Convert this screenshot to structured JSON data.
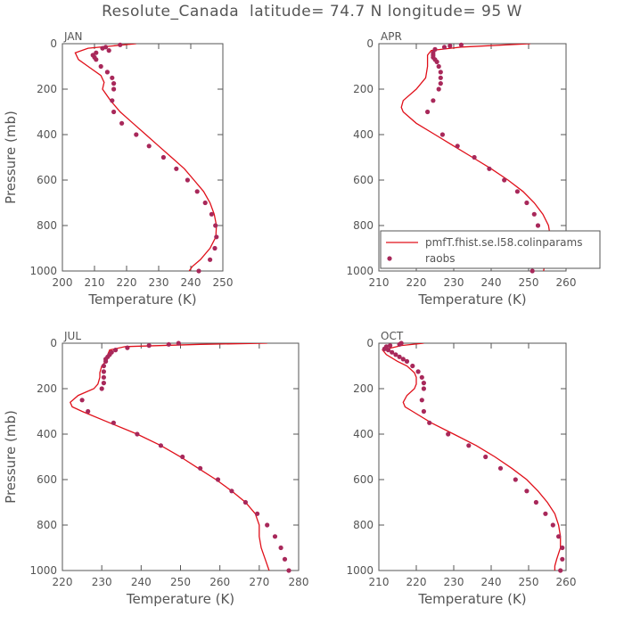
{
  "header": {
    "title": "Resolute_Canada  latitude= 74.7 N longitude= 95 W"
  },
  "colors": {
    "model_line": "#e0101a",
    "obs_dot": "#a8285a",
    "axis": "#555555"
  },
  "chart_data": [
    {
      "type": "line+scatter",
      "panel_label": "JAN",
      "xlabel": "Temperature (K)",
      "ylabel": "Pressure (mb)",
      "xlim": [
        200,
        250
      ],
      "ylim": [
        1000,
        0
      ],
      "xticks": [
        200,
        210,
        220,
        230,
        240,
        250
      ],
      "yticks": [
        0,
        200,
        400,
        600,
        800,
        1000
      ],
      "model": {
        "name": "pmfT.fhist.se.l58.colinparams",
        "p": [
          0,
          20,
          40,
          70,
          100,
          140,
          170,
          200,
          250,
          300,
          350,
          400,
          450,
          500,
          550,
          600,
          650,
          700,
          750,
          800,
          850,
          900,
          950,
          980,
          1000
        ],
        "t": [
          223,
          208,
          204,
          205,
          208,
          212,
          213,
          212.5,
          215,
          218,
          222,
          226,
          230,
          234,
          238,
          241,
          244,
          246,
          247.3,
          248,
          247.8,
          246,
          243,
          240.5,
          239.5
        ]
      },
      "raobs": {
        "name": "raobs",
        "p": [
          5,
          15,
          20,
          30,
          40,
          50,
          60,
          70,
          100,
          125,
          150,
          175,
          200,
          250,
          300,
          350,
          400,
          450,
          500,
          550,
          600,
          650,
          700,
          750,
          800,
          850,
          900,
          950,
          1000
        ],
        "t": [
          218,
          213.5,
          212.5,
          214.5,
          210.5,
          209.5,
          210,
          210.5,
          212,
          214,
          215.5,
          216,
          216,
          215.5,
          216,
          218.5,
          223,
          227,
          231.5,
          235.5,
          239,
          242,
          244.5,
          246.5,
          247.7,
          248,
          247.5,
          246,
          242.5
        ]
      }
    },
    {
      "type": "line+scatter",
      "panel_label": "APR",
      "xlabel": "Temperature (K)",
      "ylabel": "",
      "xlim": [
        210,
        260
      ],
      "ylim": [
        1000,
        0
      ],
      "xticks": [
        210,
        220,
        230,
        240,
        250,
        260
      ],
      "yticks": [
        0,
        200,
        400,
        600,
        800,
        1000
      ],
      "legend": {
        "location": "lower-right",
        "line_label": "pmfT.fhist.se.l58.colinparams",
        "dot_label": "raobs"
      },
      "model": {
        "name": "pmfT.fhist.se.l58.colinparams",
        "p": [
          0,
          15,
          30,
          50,
          100,
          150,
          200,
          250,
          280,
          300,
          350,
          400,
          450,
          500,
          550,
          600,
          650,
          700,
          750,
          800,
          850,
          900,
          950,
          1000
        ],
        "t": [
          250.5,
          232,
          224,
          223,
          223,
          222.5,
          220,
          216.5,
          216,
          216.5,
          220,
          225,
          230,
          235,
          240,
          244.5,
          248.5,
          251.5,
          253.8,
          255.3,
          255.8,
          255.3,
          254.5,
          254
        ]
      },
      "raobs": {
        "name": "raobs",
        "p": [
          5,
          10,
          15,
          25,
          40,
          50,
          60,
          70,
          80,
          100,
          125,
          150,
          175,
          200,
          250,
          300,
          400,
          450,
          500,
          550,
          600,
          650,
          700,
          750,
          800,
          850,
          900,
          950,
          1000
        ],
        "t": [
          232,
          229,
          227.5,
          225,
          224.5,
          224.5,
          224.5,
          225,
          225.5,
          226,
          226.5,
          226.5,
          226.5,
          226,
          224.5,
          223,
          227,
          231,
          235.5,
          239.5,
          243.5,
          247,
          249.5,
          251.5,
          252.5,
          253.5,
          254,
          253.5,
          251
        ]
      }
    },
    {
      "type": "line+scatter",
      "panel_label": "JUL",
      "xlabel": "Temperature (K)",
      "ylabel": "Pressure (mb)",
      "xlim": [
        220,
        280
      ],
      "ylim": [
        1000,
        0
      ],
      "xticks": [
        220,
        230,
        240,
        250,
        260,
        270,
        280
      ],
      "yticks": [
        0,
        200,
        400,
        600,
        800,
        1000
      ],
      "model": {
        "name": "pmfT.fhist.se.l58.colinparams",
        "p": [
          0,
          5,
          15,
          30,
          50,
          80,
          100,
          130,
          150,
          180,
          200,
          230,
          260,
          280,
          300,
          350,
          400,
          450,
          500,
          550,
          600,
          650,
          700,
          750,
          800,
          850,
          900,
          950,
          1000
        ],
        "t": [
          272,
          255,
          236,
          232,
          231.5,
          231,
          230,
          229.5,
          229.5,
          229,
          228,
          224,
          222,
          222.5,
          225,
          232,
          239,
          245,
          250,
          254.5,
          259,
          263,
          266.5,
          269,
          270,
          270,
          270.5,
          271.5,
          272.5
        ]
      },
      "raobs": {
        "name": "raobs",
        "p": [
          0,
          5,
          10,
          20,
          30,
          40,
          50,
          60,
          70,
          80,
          100,
          125,
          150,
          175,
          200,
          250,
          300,
          350,
          400,
          450,
          500,
          550,
          600,
          650,
          700,
          750,
          800,
          850,
          900,
          950,
          1000
        ],
        "t": [
          249.5,
          247,
          242,
          236.5,
          233.5,
          232.5,
          232,
          231.5,
          231,
          231,
          230.5,
          230.5,
          230.5,
          230.5,
          230,
          225,
          226.5,
          233,
          239,
          245,
          250.5,
          255,
          259.5,
          263,
          266.5,
          269.5,
          272,
          274,
          275.5,
          276.5,
          277.5
        ]
      }
    },
    {
      "type": "line+scatter",
      "panel_label": "OCT",
      "xlabel": "Temperature (K)",
      "ylabel": "",
      "xlim": [
        210,
        260
      ],
      "ylim": [
        1000,
        0
      ],
      "xticks": [
        210,
        220,
        230,
        240,
        250,
        260
      ],
      "yticks": [
        0,
        200,
        400,
        600,
        800,
        1000
      ],
      "model": {
        "name": "pmfT.fhist.se.l58.colinparams",
        "p": [
          0,
          10,
          30,
          50,
          80,
          100,
          130,
          150,
          180,
          200,
          230,
          260,
          280,
          300,
          350,
          400,
          450,
          500,
          550,
          600,
          650,
          700,
          750,
          800,
          850,
          900,
          950,
          980,
          1000
        ],
        "t": [
          222,
          216,
          211,
          212,
          215,
          217.5,
          219.5,
          220,
          220,
          219.5,
          217.5,
          216.5,
          217,
          219,
          224,
          230,
          236,
          241,
          245.5,
          249.5,
          252.5,
          255,
          257,
          258,
          258.5,
          258.5,
          257.5,
          257,
          257
        ]
      },
      "raobs": {
        "name": "raobs",
        "p": [
          0,
          5,
          10,
          15,
          25,
          30,
          40,
          50,
          60,
          70,
          80,
          100,
          125,
          150,
          175,
          200,
          250,
          300,
          350,
          400,
          450,
          500,
          550,
          600,
          650,
          700,
          750,
          800,
          850,
          900,
          950,
          1000
        ],
        "t": [
          216,
          215.5,
          213,
          212,
          211.5,
          212.5,
          213.5,
          214.5,
          215.5,
          216.5,
          217.5,
          219,
          220.5,
          221.5,
          222,
          222,
          221.5,
          222,
          223.5,
          228.5,
          234,
          238.5,
          242.5,
          246.5,
          249.5,
          252,
          254.5,
          256.5,
          258,
          259,
          259,
          258.5
        ]
      }
    }
  ]
}
